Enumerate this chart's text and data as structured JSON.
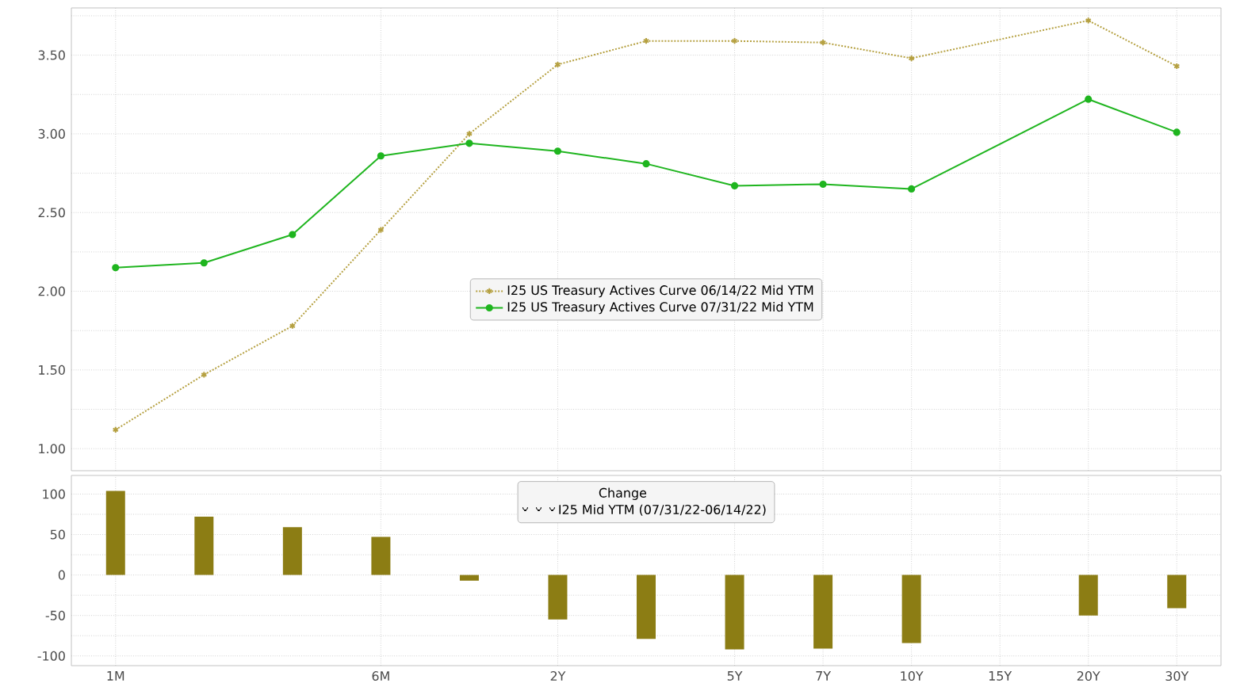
{
  "chart_data": [
    {
      "type": "line",
      "categories": [
        null,
        null,
        null,
        null,
        null,
        null,
        null,
        null,
        null,
        null,
        null,
        null,
        null
      ],
      "series": [
        {
          "name": "I25 US Treasury Actives Curve 06/14/22 Mid YTM",
          "color": "#b5a040",
          "marker": "cross",
          "line_style": "dotted",
          "values": [
            1.12,
            1.47,
            1.78,
            2.39,
            3.0,
            3.44,
            3.59,
            3.59,
            3.58,
            3.48,
            null,
            3.72,
            3.43
          ]
        },
        {
          "name": "I25 US Treasury Actives Curve 07/31/22 Mid YTM",
          "color": "#1fb51f",
          "marker": "circle",
          "line_style": "solid",
          "values": [
            2.15,
            2.18,
            2.36,
            2.86,
            2.94,
            2.89,
            2.81,
            2.67,
            2.68,
            2.65,
            null,
            3.22,
            3.01
          ]
        }
      ],
      "ylim": [
        0.86,
        3.8
      ],
      "yticks": [
        {
          "value": 1,
          "label": "1.00"
        },
        {
          "value": 1.25,
          "label": null
        },
        {
          "value": 1.5,
          "label": "1.50"
        },
        {
          "value": 1.75,
          "label": null
        },
        {
          "value": 2,
          "label": "2.00"
        },
        {
          "value": 2.25,
          "label": null
        },
        {
          "value": 2.5,
          "label": "2.50"
        },
        {
          "value": 2.75,
          "label": null
        },
        {
          "value": 3,
          "label": "3.00"
        },
        {
          "value": 3.25,
          "label": null
        },
        {
          "value": 3.5,
          "label": "3.50"
        },
        {
          "value": 3.75,
          "label": null
        }
      ],
      "tick_labels": "y",
      "grid": true,
      "legend": "center"
    },
    {
      "type": "bar",
      "categories": [
        "1M",
        null,
        null,
        "6M",
        null,
        "2Y",
        null,
        "5Y",
        "7Y",
        "10Y",
        "15Y",
        "20Y",
        "30Y"
      ],
      "legend_title": "Change",
      "series": [
        {
          "name": "I25 Mid YTM (07/31/22-06/14/22)",
          "color": "#8c7d14",
          "values": [
            104,
            72,
            59,
            47,
            -7,
            -55,
            -79,
            -92,
            -91,
            -84,
            null,
            -50,
            -41
          ]
        }
      ],
      "ylim": [
        -112,
        123
      ],
      "yticks": [
        -100,
        {
          "value": -75,
          "label": null
        },
        -50,
        {
          "value": -25,
          "label": null
        },
        0,
        {
          "value": 25,
          "label": null
        },
        50,
        {
          "value": 75,
          "label": null
        },
        100
      ],
      "grid": true,
      "legend": "top center"
    }
  ]
}
